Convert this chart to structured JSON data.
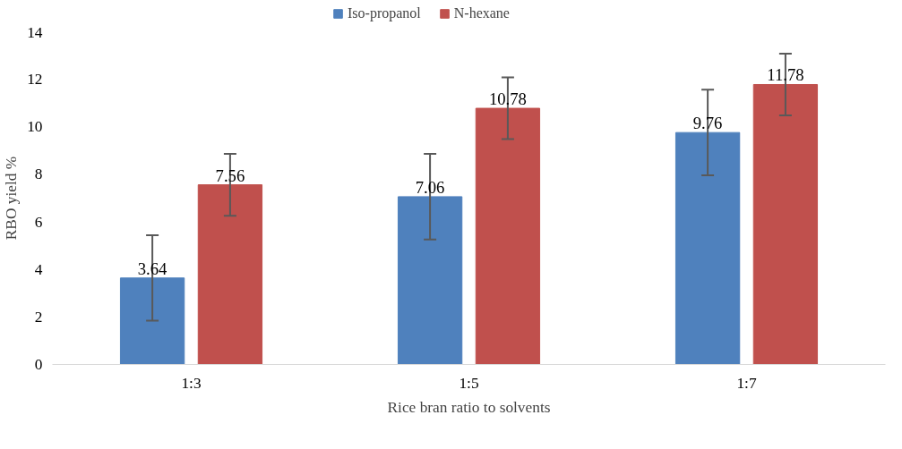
{
  "chart_data": {
    "type": "bar",
    "xlabel": "Rice bran ratio to solvents",
    "ylabel": "RBO yield %",
    "categories": [
      "1:3",
      "1:5",
      "1:7"
    ],
    "series": [
      {
        "name": "Iso-propanol",
        "color": "#4f81bd",
        "values": [
          3.64,
          7.06,
          9.76
        ],
        "errors": [
          1.8,
          1.8,
          1.8
        ]
      },
      {
        "name": "N-hexane",
        "color": "#c0504d",
        "values": [
          7.56,
          10.78,
          11.78
        ],
        "errors": [
          1.3,
          1.3,
          1.3
        ]
      }
    ],
    "ylim": [
      0,
      14
    ],
    "yticks": [
      0,
      2,
      4,
      6,
      8,
      10,
      12,
      14
    ],
    "data_labels": true,
    "grid": false,
    "legend": "top"
  }
}
